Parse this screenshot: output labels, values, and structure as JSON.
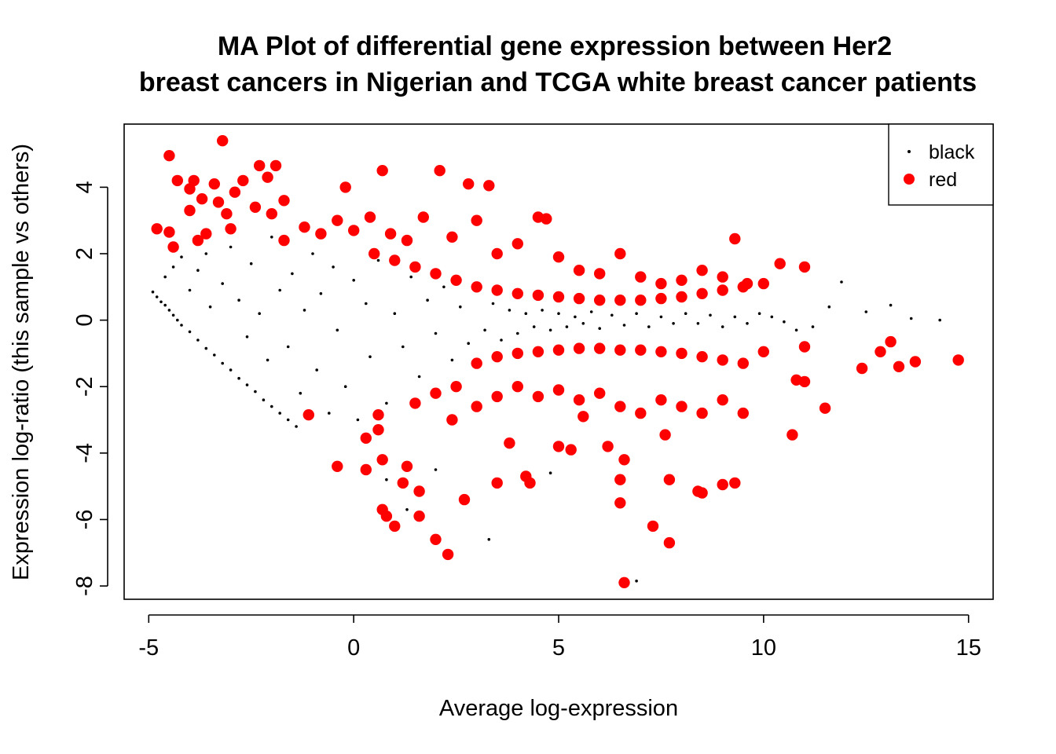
{
  "chart_data": {
    "type": "scatter",
    "title_line1": "MA Plot of differential gene expression between Her2",
    "title_line2": "breast cancers in Nigerian and TCGA white breast cancer patients",
    "xlabel": "Average log-expression",
    "ylabel": "Expression log-ratio (this sample vs others)",
    "xlim": [
      -5.6,
      15.6
    ],
    "ylim": [
      -8.4,
      5.9
    ],
    "x_ticks": [
      -5,
      0,
      5,
      10,
      15
    ],
    "x_tick_labels": [
      "-5",
      "0",
      "5",
      "10",
      "15"
    ],
    "y_ticks": [
      -8,
      -6,
      -4,
      -2,
      0,
      2,
      4
    ],
    "y_tick_labels": [
      "-8",
      "-6",
      "-4",
      "-2",
      "0",
      "2",
      "4"
    ],
    "grid": false,
    "legend_position": "top-right",
    "series": [
      {
        "name": "black",
        "color": "#000000",
        "marker": "small-dot",
        "points": [
          [
            -4.9,
            0.85
          ],
          [
            -4.8,
            0.7
          ],
          [
            -4.7,
            0.55
          ],
          [
            -4.6,
            0.45
          ],
          [
            -4.5,
            0.3
          ],
          [
            -4.4,
            0.15
          ],
          [
            -4.3,
            0.0
          ],
          [
            -4.2,
            -0.15
          ],
          [
            -4.0,
            -0.35
          ],
          [
            -3.8,
            -0.6
          ],
          [
            -3.6,
            -0.85
          ],
          [
            -3.4,
            -1.05
          ],
          [
            -3.2,
            -1.3
          ],
          [
            -3.0,
            -1.5
          ],
          [
            -2.8,
            -1.75
          ],
          [
            -2.6,
            -1.95
          ],
          [
            -2.4,
            -2.15
          ],
          [
            -2.2,
            -2.4
          ],
          [
            -2.0,
            -2.6
          ],
          [
            -1.8,
            -2.8
          ],
          [
            -1.6,
            -3.0
          ],
          [
            -1.4,
            -3.2
          ],
          [
            -4.6,
            1.3
          ],
          [
            -4.4,
            1.6
          ],
          [
            -4.2,
            1.9
          ],
          [
            -4.0,
            0.9
          ],
          [
            -3.8,
            1.5
          ],
          [
            -3.6,
            2.0
          ],
          [
            -3.5,
            0.4
          ],
          [
            -3.2,
            1.1
          ],
          [
            -3.0,
            2.2
          ],
          [
            -2.8,
            0.6
          ],
          [
            -2.6,
            -0.5
          ],
          [
            -2.5,
            1.7
          ],
          [
            -2.3,
            0.2
          ],
          [
            -2.1,
            -1.2
          ],
          [
            -2.0,
            2.5
          ],
          [
            -1.8,
            0.9
          ],
          [
            -1.6,
            -0.8
          ],
          [
            -1.5,
            1.4
          ],
          [
            -1.3,
            -2.2
          ],
          [
            -1.2,
            0.3
          ],
          [
            -1.0,
            2.0
          ],
          [
            -0.9,
            -1.5
          ],
          [
            -0.8,
            0.8
          ],
          [
            -0.6,
            -2.8
          ],
          [
            -0.5,
            1.6
          ],
          [
            -0.4,
            -0.3
          ],
          [
            -0.2,
            -2.0
          ],
          [
            0.0,
            1.2
          ],
          [
            0.1,
            -3.0
          ],
          [
            0.3,
            0.5
          ],
          [
            0.4,
            -1.1
          ],
          [
            0.6,
            1.8
          ],
          [
            0.8,
            -2.5
          ],
          [
            1.0,
            0.2
          ],
          [
            1.2,
            -0.8
          ],
          [
            1.4,
            1.3
          ],
          [
            1.6,
            -1.7
          ],
          [
            1.8,
            0.6
          ],
          [
            2.0,
            -0.4
          ],
          [
            2.2,
            1.0
          ],
          [
            2.4,
            -1.2
          ],
          [
            2.6,
            0.4
          ],
          [
            2.8,
            -0.7
          ],
          [
            3.0,
            0.9
          ],
          [
            3.2,
            -0.3
          ],
          [
            3.4,
            0.5
          ],
          [
            3.6,
            -0.6
          ],
          [
            3.8,
            0.3
          ],
          [
            4.0,
            -0.4
          ],
          [
            4.2,
            0.2
          ],
          [
            4.4,
            -0.2
          ],
          [
            4.6,
            0.3
          ],
          [
            4.8,
            -0.3
          ],
          [
            5.0,
            0.2
          ],
          [
            5.2,
            -0.2
          ],
          [
            5.4,
            0.1
          ],
          [
            5.6,
            -0.1
          ],
          [
            5.8,
            0.25
          ],
          [
            6.0,
            -0.25
          ],
          [
            6.3,
            0.15
          ],
          [
            6.6,
            -0.15
          ],
          [
            6.9,
            0.2
          ],
          [
            7.2,
            -0.2
          ],
          [
            7.5,
            0.1
          ],
          [
            7.8,
            -0.1
          ],
          [
            8.1,
            0.2
          ],
          [
            8.4,
            -0.1
          ],
          [
            8.7,
            0.15
          ],
          [
            9.0,
            -0.2
          ],
          [
            9.3,
            0.1
          ],
          [
            9.6,
            -0.1
          ],
          [
            9.9,
            0.2
          ],
          [
            10.2,
            0.1
          ],
          [
            10.5,
            -0.05
          ],
          [
            10.8,
            -0.3
          ],
          [
            11.2,
            -0.2
          ],
          [
            11.6,
            0.4
          ],
          [
            11.9,
            1.15
          ],
          [
            12.5,
            0.25
          ],
          [
            13.1,
            0.45
          ],
          [
            13.6,
            0.05
          ],
          [
            14.3,
            0.0
          ],
          [
            3.3,
            -6.6
          ],
          [
            6.9,
            -7.85
          ],
          [
            2.0,
            -4.5
          ],
          [
            1.3,
            -5.7
          ],
          [
            4.8,
            -4.6
          ],
          [
            0.8,
            -4.8
          ]
        ]
      },
      {
        "name": "red",
        "color": "#ff0000",
        "marker": "large-dot",
        "points": [
          [
            -4.5,
            4.95
          ],
          [
            -3.2,
            5.4
          ],
          [
            -2.3,
            4.65
          ],
          [
            -1.9,
            4.65
          ],
          [
            -4.3,
            4.2
          ],
          [
            -3.9,
            4.2
          ],
          [
            -3.4,
            4.1
          ],
          [
            -2.7,
            4.2
          ],
          [
            -2.1,
            4.3
          ],
          [
            -4.0,
            3.95
          ],
          [
            -2.9,
            3.85
          ],
          [
            -3.7,
            3.65
          ],
          [
            -3.3,
            3.55
          ],
          [
            -2.4,
            3.4
          ],
          [
            -1.7,
            3.6
          ],
          [
            -4.0,
            3.3
          ],
          [
            -3.1,
            3.2
          ],
          [
            -2.0,
            3.2
          ],
          [
            -4.8,
            2.75
          ],
          [
            -4.5,
            2.65
          ],
          [
            -3.6,
            2.6
          ],
          [
            -3.0,
            2.75
          ],
          [
            -1.7,
            2.4
          ],
          [
            -3.8,
            2.4
          ],
          [
            -4.4,
            2.2
          ],
          [
            -1.2,
            2.8
          ],
          [
            -0.8,
            2.6
          ],
          [
            -0.4,
            3.0
          ],
          [
            -0.2,
            4.0
          ],
          [
            0.0,
            2.7
          ],
          [
            0.4,
            3.1
          ],
          [
            0.7,
            4.5
          ],
          [
            0.9,
            2.6
          ],
          [
            1.3,
            2.4
          ],
          [
            1.7,
            3.1
          ],
          [
            2.1,
            4.5
          ],
          [
            2.4,
            2.5
          ],
          [
            2.8,
            4.1
          ],
          [
            3.3,
            4.05
          ],
          [
            3.0,
            3.0
          ],
          [
            3.5,
            2.0
          ],
          [
            4.0,
            2.3
          ],
          [
            4.5,
            3.1
          ],
          [
            4.7,
            3.05
          ],
          [
            5.0,
            1.9
          ],
          [
            5.5,
            1.5
          ],
          [
            6.0,
            1.4
          ],
          [
            6.5,
            2.0
          ],
          [
            7.0,
            1.3
          ],
          [
            7.5,
            1.1
          ],
          [
            8.0,
            1.2
          ],
          [
            8.5,
            1.5
          ],
          [
            9.0,
            1.3
          ],
          [
            9.3,
            2.45
          ],
          [
            9.6,
            1.1
          ],
          [
            10.0,
            1.1
          ],
          [
            10.4,
            1.7
          ],
          [
            11.0,
            1.6
          ],
          [
            0.5,
            2.0
          ],
          [
            1.0,
            1.8
          ],
          [
            1.5,
            1.6
          ],
          [
            2.0,
            1.4
          ],
          [
            2.5,
            1.2
          ],
          [
            3.0,
            1.0
          ],
          [
            3.5,
            0.9
          ],
          [
            4.0,
            0.8
          ],
          [
            4.5,
            0.75
          ],
          [
            5.0,
            0.7
          ],
          [
            5.5,
            0.65
          ],
          [
            6.0,
            0.6
          ],
          [
            6.5,
            0.6
          ],
          [
            7.0,
            0.6
          ],
          [
            7.5,
            0.65
          ],
          [
            8.0,
            0.7
          ],
          [
            8.5,
            0.8
          ],
          [
            9.0,
            0.9
          ],
          [
            9.5,
            1.0
          ],
          [
            3.0,
            -1.3
          ],
          [
            3.5,
            -1.1
          ],
          [
            4.0,
            -1.0
          ],
          [
            4.5,
            -0.95
          ],
          [
            5.0,
            -0.9
          ],
          [
            5.5,
            -0.85
          ],
          [
            6.0,
            -0.85
          ],
          [
            6.5,
            -0.9
          ],
          [
            7.0,
            -0.9
          ],
          [
            7.5,
            -0.95
          ],
          [
            8.0,
            -1.0
          ],
          [
            8.5,
            -1.1
          ],
          [
            9.0,
            -1.2
          ],
          [
            9.5,
            -1.3
          ],
          [
            10.0,
            -0.95
          ],
          [
            11.0,
            -0.8
          ],
          [
            13.1,
            -0.65
          ],
          [
            12.85,
            -0.95
          ],
          [
            12.4,
            -1.45
          ],
          [
            13.3,
            -1.4
          ],
          [
            13.7,
            -1.25
          ],
          [
            14.75,
            -1.2
          ],
          [
            10.8,
            -1.8
          ],
          [
            11.0,
            -1.85
          ],
          [
            11.5,
            -2.65
          ],
          [
            10.7,
            -3.45
          ],
          [
            9.5,
            -2.8
          ],
          [
            9.3,
            -4.9
          ],
          [
            9.0,
            -4.95
          ],
          [
            8.5,
            -5.2
          ],
          [
            8.4,
            -5.15
          ],
          [
            7.7,
            -6.7
          ],
          [
            7.3,
            -6.2
          ],
          [
            6.6,
            -7.9
          ],
          [
            6.5,
            -5.5
          ],
          [
            6.5,
            -4.8
          ],
          [
            6.6,
            -4.2
          ],
          [
            5.3,
            -3.9
          ],
          [
            5.0,
            -3.8
          ],
          [
            4.3,
            -4.9
          ],
          [
            4.2,
            -4.7
          ],
          [
            3.5,
            -4.9
          ],
          [
            2.7,
            -5.4
          ],
          [
            2.3,
            -7.05
          ],
          [
            2.0,
            -6.6
          ],
          [
            1.6,
            -5.9
          ],
          [
            1.0,
            -6.2
          ],
          [
            0.8,
            -5.9
          ],
          [
            0.7,
            -5.7
          ],
          [
            1.2,
            -4.9
          ],
          [
            1.6,
            -5.15
          ],
          [
            0.7,
            -4.2
          ],
          [
            0.3,
            -4.5
          ],
          [
            -0.4,
            -4.4
          ],
          [
            0.3,
            -3.55
          ],
          [
            0.6,
            -3.3
          ],
          [
            0.6,
            -2.85
          ],
          [
            -1.1,
            -2.85
          ],
          [
            1.5,
            -2.5
          ],
          [
            2.0,
            -2.2
          ],
          [
            2.5,
            -2.0
          ],
          [
            3.0,
            -2.6
          ],
          [
            3.5,
            -2.3
          ],
          [
            4.0,
            -2.0
          ],
          [
            4.5,
            -2.3
          ],
          [
            5.0,
            -2.1
          ],
          [
            5.5,
            -2.4
          ],
          [
            6.0,
            -2.2
          ],
          [
            6.5,
            -2.6
          ],
          [
            7.0,
            -2.8
          ],
          [
            7.5,
            -2.4
          ],
          [
            8.0,
            -2.6
          ],
          [
            8.5,
            -2.8
          ],
          [
            9.0,
            -2.4
          ],
          [
            7.6,
            -3.45
          ],
          [
            7.7,
            -4.8
          ],
          [
            6.2,
            -3.8
          ],
          [
            5.6,
            -2.9
          ],
          [
            1.3,
            -4.4
          ],
          [
            2.4,
            -3.0
          ],
          [
            3.8,
            -3.7
          ]
        ]
      }
    ]
  }
}
